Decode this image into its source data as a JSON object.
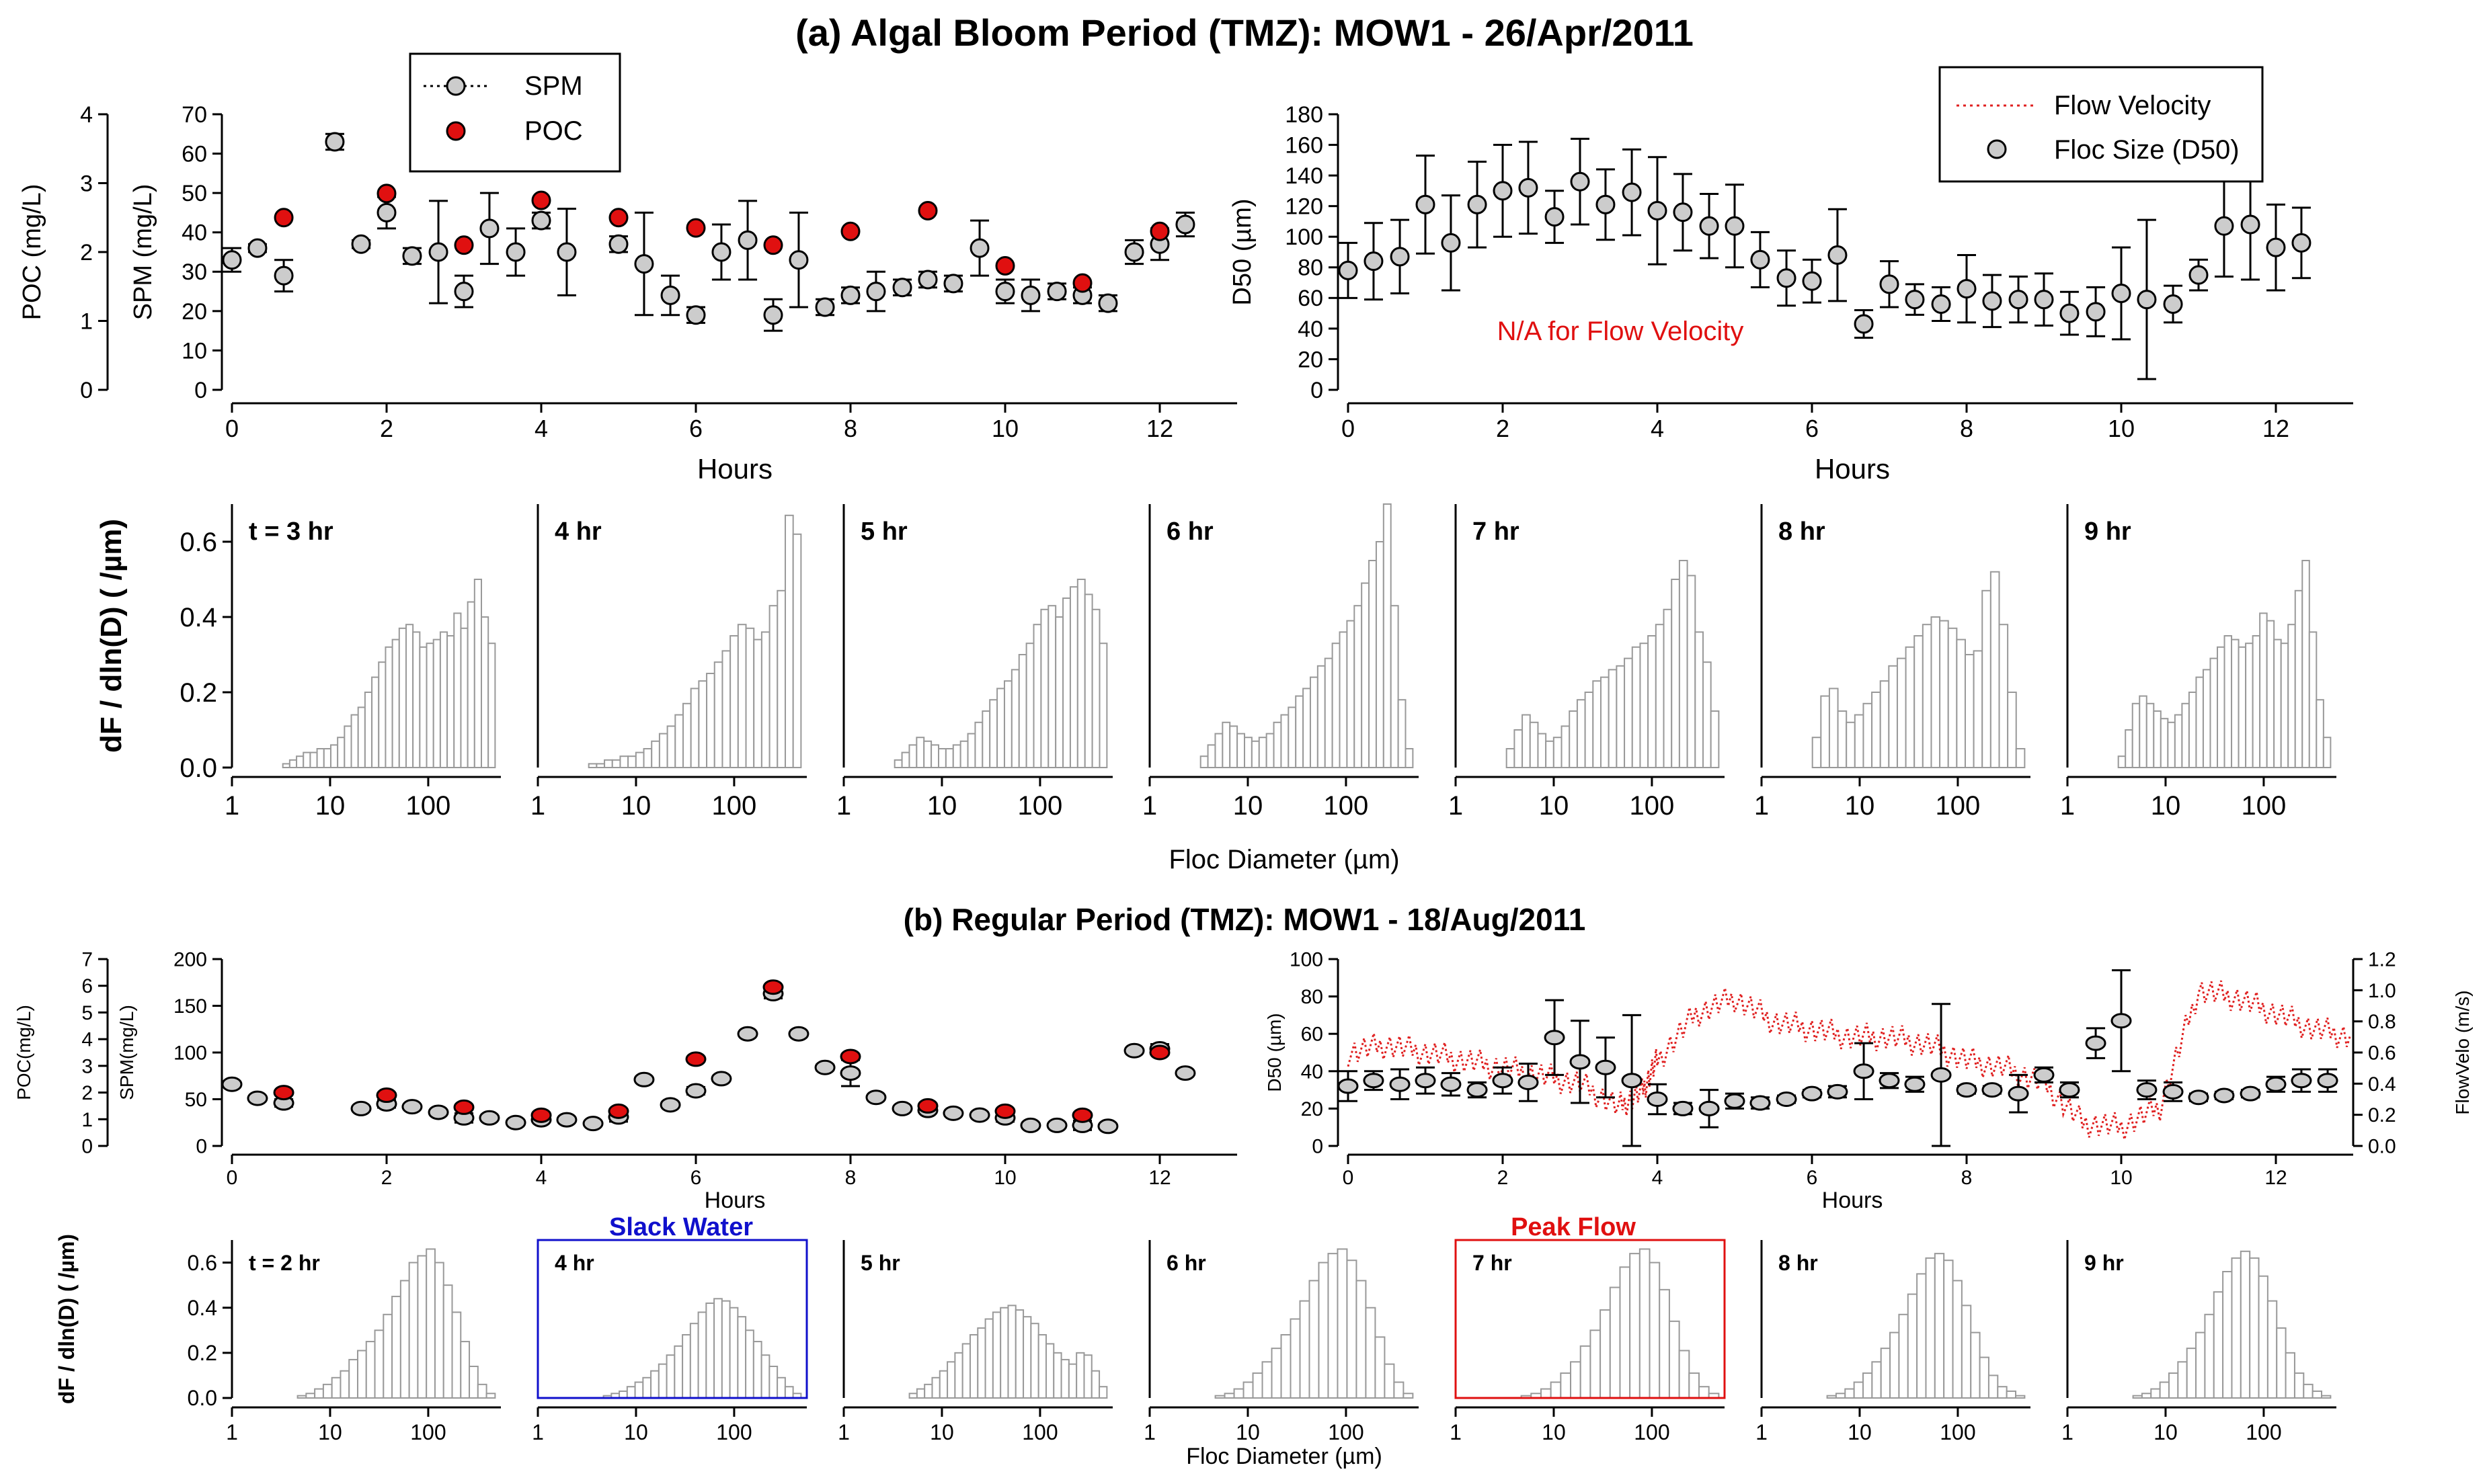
{
  "figure": {
    "title_a": "(a) Algal Bloom Period (TMZ): MOW1 - 26/Apr/2011",
    "title_b": "(b) Regular Period (TMZ): MOW1 - 18/Aug/2011",
    "na_note": "N/A for Flow Velocity",
    "slack_label": "Slack Water",
    "peak_label": "Peak Flow",
    "colors": {
      "poc": "#e01010",
      "spm": "#cccccc",
      "velocity": "#e02020",
      "slack_box": "#1010cc",
      "peak_box": "#e01010",
      "bar": "#ffffff",
      "bar_edge": "#999999"
    }
  },
  "chart_data": [
    {
      "id": "a1",
      "type": "scatter",
      "title": "",
      "xlabel": "Hours",
      "ylabel_left": "POC (mg/L)",
      "ylabel_right": "SPM (mg/L)",
      "xlim": [
        0,
        13
      ],
      "ylim_poc": [
        0,
        4
      ],
      "ylim_spm": [
        0,
        70
      ],
      "xticks": [
        "0",
        "2",
        "4",
        "6",
        "8",
        "10",
        "12"
      ],
      "poc_ticks": [
        "0",
        "1",
        "2",
        "3",
        "4"
      ],
      "spm_ticks": [
        "0",
        "10",
        "20",
        "30",
        "40",
        "50",
        "60",
        "70"
      ],
      "legend": [
        "SPM",
        "POC"
      ],
      "spm_series": {
        "x": [
          0,
          0.33,
          0.67,
          1.33,
          1.67,
          2,
          2.33,
          2.67,
          3,
          3.33,
          3.67,
          4,
          4.33,
          5,
          5.33,
          5.67,
          6,
          6.33,
          6.67,
          7,
          7.33,
          7.67,
          8,
          8.33,
          8.67,
          9,
          9.33,
          9.67,
          10,
          10.33,
          10.67,
          11,
          11.33,
          11.67,
          12,
          12.33
        ],
        "y": [
          33,
          36,
          29,
          63,
          37,
          45,
          34,
          35,
          25,
          41,
          35,
          43,
          35,
          37,
          32,
          24,
          19,
          35,
          38,
          19,
          33,
          21,
          24,
          25,
          26,
          28,
          27,
          36,
          25,
          24,
          25,
          24,
          22,
          35,
          37,
          42
        ],
        "err": [
          3,
          1,
          4,
          2,
          1,
          4,
          2,
          13,
          4,
          9,
          6,
          2,
          11,
          2,
          13,
          5,
          2,
          7,
          10,
          4,
          12,
          2,
          2,
          5,
          2,
          2,
          2,
          7,
          3,
          4,
          2,
          2,
          2,
          3,
          4,
          3
        ]
      },
      "poc_series": {
        "x": [
          0.67,
          2,
          3,
          4,
          5,
          6,
          7,
          8,
          9,
          10,
          11,
          12
        ],
        "y": [
          2.5,
          2.85,
          2.1,
          2.75,
          2.5,
          2.35,
          2.1,
          2.3,
          2.6,
          1.8,
          1.55,
          2.3
        ]
      }
    },
    {
      "id": "a2",
      "type": "scatter",
      "xlabel": "Hours",
      "ylabel": "D50 (µm)",
      "xlim": [
        0,
        13
      ],
      "ylim": [
        0,
        180
      ],
      "xticks": [
        "0",
        "2",
        "4",
        "6",
        "8",
        "10",
        "12"
      ],
      "yticks": [
        "0",
        "20",
        "40",
        "60",
        "80",
        "100",
        "120",
        "140",
        "160",
        "180"
      ],
      "legend": [
        "Flow Velocity",
        "Floc Size (D50)"
      ],
      "d50_series": {
        "x": [
          0,
          0.33,
          0.67,
          1,
          1.33,
          1.67,
          2,
          2.33,
          2.67,
          3,
          3.33,
          3.67,
          4,
          4.33,
          4.67,
          5,
          5.33,
          5.67,
          6,
          6.33,
          6.67,
          7,
          7.33,
          7.67,
          8,
          8.33,
          8.67,
          9,
          9.33,
          9.67,
          10,
          10.33,
          10.67,
          11,
          11.33,
          11.67,
          12,
          12.33
        ],
        "y": [
          78,
          84,
          87,
          121,
          96,
          121,
          130,
          132,
          113,
          136,
          121,
          129,
          117,
          116,
          107,
          107,
          85,
          73,
          71,
          88,
          43,
          69,
          59,
          56,
          66,
          58,
          59,
          59,
          50,
          51,
          63,
          59,
          56,
          75,
          107,
          108,
          93,
          96
        ],
        "err": [
          18,
          25,
          24,
          32,
          31,
          28,
          30,
          30,
          17,
          28,
          23,
          28,
          35,
          25,
          21,
          27,
          18,
          18,
          14,
          30,
          9,
          15,
          10,
          11,
          22,
          17,
          15,
          17,
          14,
          16,
          30,
          52,
          12,
          10,
          33,
          36,
          28,
          23
        ]
      }
    },
    {
      "id": "b1",
      "type": "scatter",
      "xlabel": "Hours",
      "ylabel_left": "POC(mg/L)",
      "ylabel_right": "SPM(mg/L)",
      "xlim": [
        0,
        13
      ],
      "ylim_poc": [
        0,
        7
      ],
      "ylim_spm": [
        0,
        200
      ],
      "xticks": [
        "0",
        "2",
        "4",
        "6",
        "8",
        "10",
        "12"
      ],
      "poc_ticks": [
        "0",
        "1",
        "2",
        "3",
        "4",
        "5",
        "6",
        "7"
      ],
      "spm_ticks": [
        "0",
        "50",
        "100",
        "150",
        "200"
      ],
      "spm_series": {
        "x": [
          0,
          0.33,
          0.67,
          1.67,
          2,
          2.33,
          2.67,
          3,
          3.33,
          3.67,
          4,
          4.33,
          4.67,
          5,
          5.33,
          5.67,
          6,
          6.33,
          6.67,
          7,
          7.33,
          7.67,
          8,
          8.33,
          8.67,
          9,
          9.33,
          9.67,
          10,
          10.33,
          10.67,
          11,
          11.33,
          11.67,
          12,
          12.33
        ],
        "y": [
          66,
          51,
          46,
          40,
          45,
          42,
          36,
          30,
          30,
          25,
          28,
          28,
          24,
          31,
          71,
          44,
          59,
          72,
          120,
          163,
          120,
          84,
          78,
          52,
          40,
          38,
          35,
          33,
          30,
          22,
          22,
          22,
          21,
          102,
          104,
          78
        ],
        "err": [
          2,
          2,
          4,
          2,
          4,
          2,
          2,
          5,
          2,
          2,
          2,
          2,
          2,
          5,
          2,
          2,
          4,
          2,
          2,
          5,
          2,
          3,
          14,
          2,
          2,
          2,
          2,
          2,
          4,
          2,
          2,
          5,
          2,
          2,
          5,
          2
        ]
      },
      "poc_series": {
        "x": [
          0.67,
          2,
          3,
          4,
          5,
          6,
          7,
          8,
          9,
          10,
          11,
          12
        ],
        "y": [
          2.0,
          1.9,
          1.45,
          1.15,
          1.3,
          3.25,
          5.95,
          3.35,
          1.5,
          1.3,
          1.15,
          3.5
        ]
      }
    },
    {
      "id": "b2",
      "type": "line",
      "xlabel": "Hours",
      "ylabel_left": "D50 (µm)",
      "ylabel_right": "FlowVelo (m/s)",
      "xlim": [
        0,
        13
      ],
      "ylim_d50": [
        0,
        100
      ],
      "ylim_velocity": [
        0,
        1.2
      ],
      "xticks": [
        "0",
        "2",
        "4",
        "6",
        "8",
        "10",
        "12"
      ],
      "d50_ticks": [
        "0",
        "20",
        "40",
        "60",
        "80",
        "100"
      ],
      "velocity_ticks": [
        "0.0",
        "0.2",
        "0.4",
        "0.6",
        "0.8",
        "1.0",
        "1.2"
      ],
      "d50_series": {
        "x": [
          0,
          0.33,
          0.67,
          1,
          1.33,
          1.67,
          2,
          2.33,
          2.67,
          3,
          3.33,
          3.67,
          4,
          4.33,
          4.67,
          5,
          5.33,
          5.67,
          6,
          6.33,
          6.67,
          7,
          7.33,
          7.67,
          8,
          8.33,
          8.67,
          9,
          9.33,
          9.67,
          10,
          10.33,
          10.67,
          11,
          11.33,
          11.67,
          12,
          12.33,
          12.67
        ],
        "y": [
          32,
          35,
          33,
          35,
          33,
          30,
          35,
          34,
          58,
          45,
          42,
          35,
          25,
          20,
          20,
          24,
          23,
          25,
          28,
          29,
          40,
          35,
          33,
          38,
          30,
          30,
          28,
          38,
          30,
          55,
          67,
          30,
          29,
          26,
          27,
          28,
          33,
          35,
          35
        ],
        "err": [
          8,
          5,
          8,
          7,
          6,
          4,
          7,
          10,
          20,
          22,
          16,
          35,
          8,
          3,
          10,
          4,
          3,
          2,
          2,
          3,
          15,
          4,
          4,
          38,
          2,
          2,
          10,
          4,
          4,
          8,
          27,
          5,
          5,
          2,
          2,
          2,
          4,
          6,
          6
        ]
      },
      "velocity_series": {
        "x": [
          0,
          0.5,
          1,
          1.5,
          2,
          2.5,
          3,
          3.5,
          3.8,
          4,
          4.5,
          5,
          5.5,
          6,
          6.5,
          7,
          7.5,
          8,
          8.5,
          9,
          9.5,
          10,
          10.5,
          11,
          11.5,
          12,
          12.5,
          13
        ],
        "y": [
          0.6,
          0.65,
          0.6,
          0.55,
          0.5,
          0.45,
          0.4,
          0.25,
          0.35,
          0.55,
          0.85,
          0.95,
          0.8,
          0.75,
          0.7,
          0.7,
          0.65,
          0.55,
          0.5,
          0.4,
          0.15,
          0.12,
          0.25,
          1.0,
          0.95,
          0.85,
          0.75,
          0.7
        ]
      }
    }
  ],
  "histograms": {
    "a": {
      "ylabel": "dF / dln(D) ( /µm)",
      "xlabel": "Floc Diameter (µm)",
      "ylim": [
        0,
        0.7
      ],
      "yticks": [
        "0.0",
        "0.2",
        "0.4",
        "0.6"
      ],
      "xticks": [
        "1",
        "10",
        "100"
      ],
      "panels": [
        {
          "label": "t = 3 hr",
          "values": [
            0.01,
            0.02,
            0.03,
            0.04,
            0.04,
            0.05,
            0.05,
            0.06,
            0.08,
            0.11,
            0.14,
            0.16,
            0.2,
            0.24,
            0.28,
            0.32,
            0.34,
            0.37,
            0.38,
            0.36,
            0.32,
            0.33,
            0.34,
            0.36,
            0.35,
            0.41,
            0.37,
            0.44,
            0.5,
            0.4,
            0.33
          ]
        },
        {
          "label": "4 hr",
          "values": [
            0.01,
            0.01,
            0.02,
            0.02,
            0.03,
            0.03,
            0.04,
            0.05,
            0.07,
            0.09,
            0.11,
            0.14,
            0.17,
            0.21,
            0.23,
            0.25,
            0.28,
            0.31,
            0.35,
            0.38,
            0.37,
            0.34,
            0.36,
            0.43,
            0.47,
            0.67,
            0.62
          ]
        },
        {
          "label": "5 hr",
          "values": [
            0.02,
            0.04,
            0.06,
            0.08,
            0.07,
            0.06,
            0.05,
            0.05,
            0.06,
            0.07,
            0.09,
            0.12,
            0.15,
            0.18,
            0.21,
            0.23,
            0.26,
            0.3,
            0.33,
            0.38,
            0.42,
            0.43,
            0.4,
            0.45,
            0.48,
            0.5,
            0.46,
            0.42,
            0.33
          ]
        },
        {
          "label": "6 hr",
          "values": [
            0.03,
            0.06,
            0.09,
            0.12,
            0.11,
            0.09,
            0.08,
            0.07,
            0.08,
            0.09,
            0.12,
            0.14,
            0.16,
            0.19,
            0.21,
            0.24,
            0.27,
            0.29,
            0.33,
            0.36,
            0.39,
            0.43,
            0.49,
            0.55,
            0.6,
            0.7,
            0.43,
            0.18,
            0.05
          ]
        },
        {
          "label": "7 hr",
          "values": [
            0.05,
            0.1,
            0.14,
            0.12,
            0.09,
            0.07,
            0.08,
            0.11,
            0.15,
            0.18,
            0.2,
            0.23,
            0.24,
            0.26,
            0.27,
            0.29,
            0.32,
            0.33,
            0.35,
            0.38,
            0.42,
            0.5,
            0.55,
            0.51,
            0.36,
            0.28,
            0.15
          ]
        },
        {
          "label": "8 hr",
          "values": [
            0.08,
            0.19,
            0.21,
            0.15,
            0.12,
            0.14,
            0.17,
            0.2,
            0.23,
            0.27,
            0.29,
            0.32,
            0.35,
            0.38,
            0.4,
            0.39,
            0.37,
            0.34,
            0.3,
            0.31,
            0.47,
            0.52,
            0.38,
            0.2,
            0.05
          ]
        },
        {
          "label": "9 hr",
          "values": [
            0.03,
            0.1,
            0.17,
            0.19,
            0.17,
            0.15,
            0.13,
            0.12,
            0.14,
            0.17,
            0.2,
            0.24,
            0.26,
            0.29,
            0.32,
            0.35,
            0.34,
            0.32,
            0.33,
            0.35,
            0.41,
            0.39,
            0.34,
            0.33,
            0.38,
            0.47,
            0.55,
            0.36,
            0.18,
            0.08
          ]
        }
      ]
    },
    "b": {
      "ylabel": "dF / dln(D) ( /µm)",
      "xlabel": "Floc Diameter (µm)",
      "ylim": [
        0,
        0.7
      ],
      "yticks": [
        "0.0",
        "0.2",
        "0.4",
        "0.6"
      ],
      "xticks": [
        "1",
        "10",
        "100"
      ],
      "panels": [
        {
          "label": "t = 2 hr",
          "values": [
            0.01,
            0.02,
            0.04,
            0.06,
            0.09,
            0.12,
            0.17,
            0.21,
            0.25,
            0.3,
            0.37,
            0.45,
            0.52,
            0.6,
            0.63,
            0.66,
            0.6,
            0.5,
            0.38,
            0.25,
            0.14,
            0.06,
            0.02
          ]
        },
        {
          "label": "4 hr",
          "values": [
            0.01,
            0.02,
            0.03,
            0.05,
            0.07,
            0.09,
            0.12,
            0.15,
            0.19,
            0.23,
            0.28,
            0.33,
            0.38,
            0.42,
            0.44,
            0.43,
            0.4,
            0.36,
            0.3,
            0.25,
            0.19,
            0.14,
            0.09,
            0.05,
            0.02
          ]
        },
        {
          "label": "5 hr",
          "values": [
            0.02,
            0.04,
            0.06,
            0.09,
            0.12,
            0.16,
            0.2,
            0.24,
            0.28,
            0.31,
            0.35,
            0.38,
            0.4,
            0.41,
            0.39,
            0.36,
            0.33,
            0.28,
            0.24,
            0.2,
            0.17,
            0.15,
            0.2,
            0.19,
            0.12,
            0.05
          ]
        },
        {
          "label": "6 hr",
          "values": [
            0.01,
            0.02,
            0.04,
            0.07,
            0.11,
            0.16,
            0.22,
            0.28,
            0.35,
            0.43,
            0.52,
            0.6,
            0.64,
            0.66,
            0.61,
            0.52,
            0.4,
            0.27,
            0.15,
            0.07,
            0.02
          ]
        },
        {
          "label": "7 hr",
          "values": [
            0.01,
            0.02,
            0.04,
            0.07,
            0.11,
            0.16,
            0.23,
            0.3,
            0.39,
            0.49,
            0.58,
            0.64,
            0.66,
            0.6,
            0.48,
            0.34,
            0.21,
            0.11,
            0.05,
            0.02
          ]
        },
        {
          "label": "8 hr",
          "values": [
            0.01,
            0.02,
            0.04,
            0.07,
            0.11,
            0.16,
            0.22,
            0.29,
            0.37,
            0.46,
            0.55,
            0.62,
            0.64,
            0.61,
            0.52,
            0.41,
            0.29,
            0.18,
            0.1,
            0.05,
            0.03,
            0.01
          ]
        },
        {
          "label": "9 hr",
          "values": [
            0.01,
            0.02,
            0.04,
            0.07,
            0.11,
            0.16,
            0.22,
            0.29,
            0.37,
            0.47,
            0.56,
            0.62,
            0.65,
            0.62,
            0.54,
            0.43,
            0.31,
            0.2,
            0.11,
            0.06,
            0.03,
            0.01
          ]
        }
      ]
    }
  }
}
